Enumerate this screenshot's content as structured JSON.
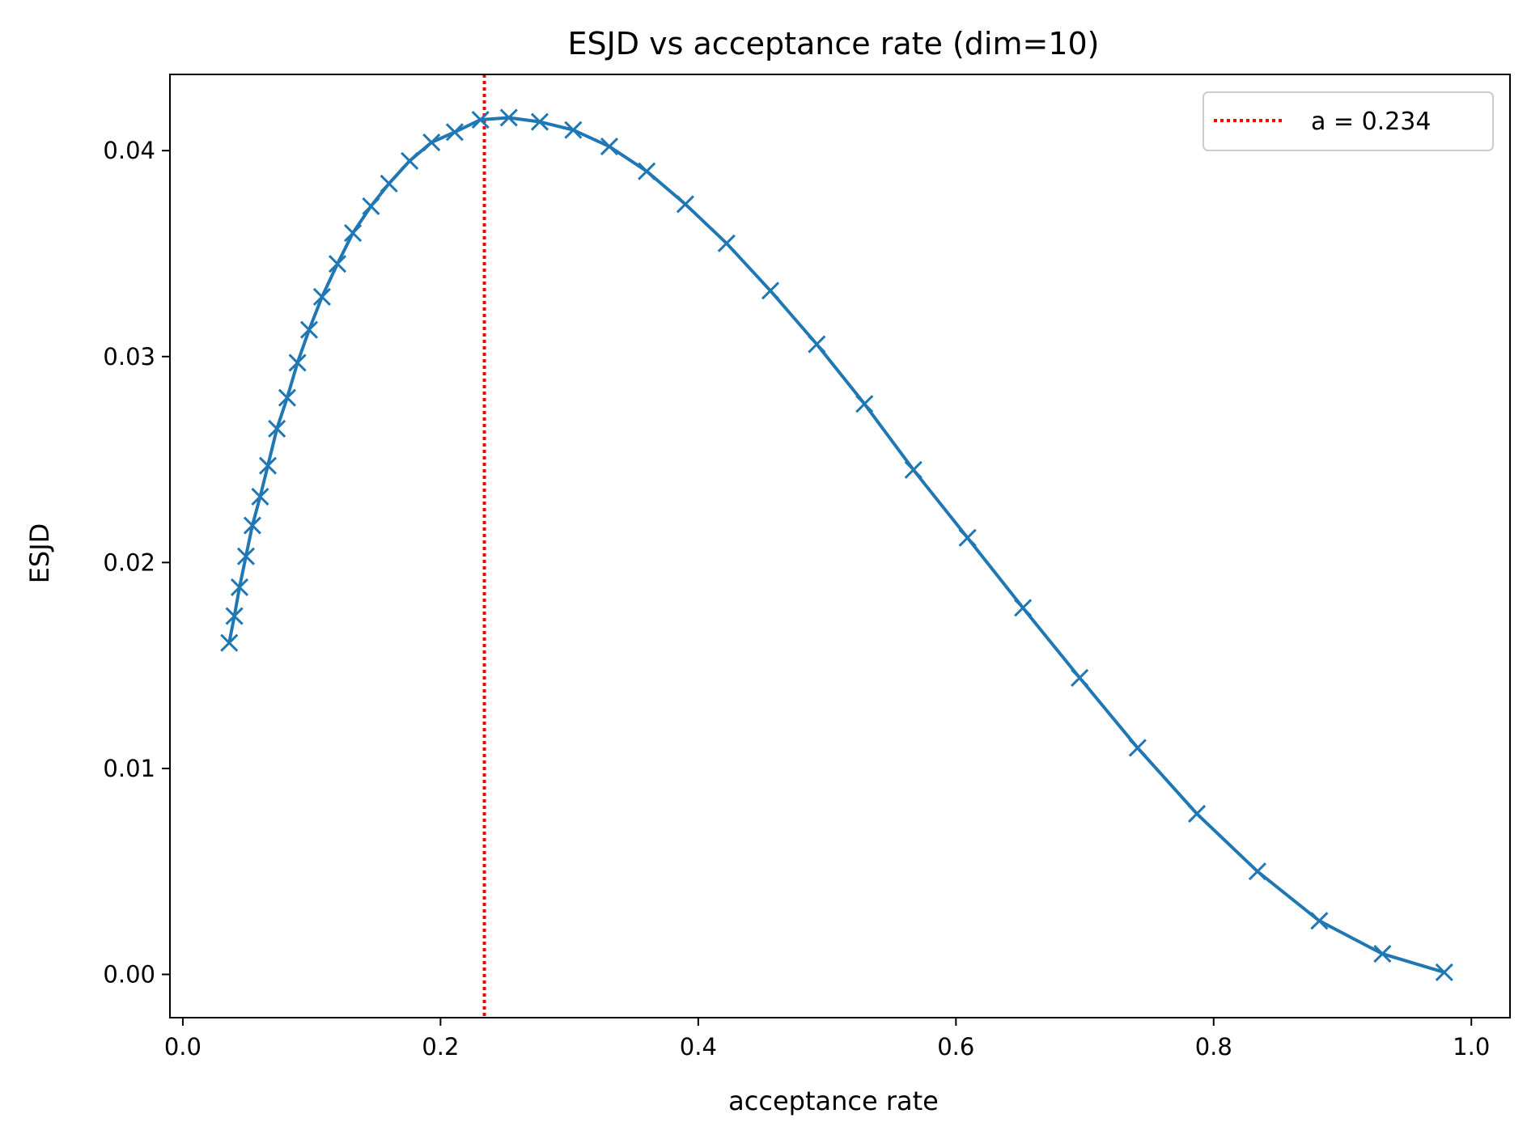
{
  "chart_data": {
    "type": "line",
    "title": "ESJD vs acceptance rate (dim=10)",
    "xlabel": "acceptance rate",
    "ylabel": "ESJD",
    "xlim": [
      -0.01,
      1.03
    ],
    "ylim": [
      -0.0021,
      0.0437
    ],
    "xticks": [
      0.0,
      0.2,
      0.4,
      0.6,
      0.8,
      1.0
    ],
    "xtick_labels": [
      "0.0",
      "0.2",
      "0.4",
      "0.6",
      "0.8",
      "1.0"
    ],
    "yticks": [
      0.0,
      0.01,
      0.02,
      0.03,
      0.04
    ],
    "ytick_labels": [
      "0.00",
      "0.01",
      "0.02",
      "0.03",
      "0.04"
    ],
    "grid": false,
    "legend_position": "top-right",
    "series": [
      {
        "name": "ESJD",
        "color": "#1f77b4",
        "marker": "x",
        "x": [
          0.036,
          0.04,
          0.044,
          0.049,
          0.054,
          0.06,
          0.066,
          0.073,
          0.081,
          0.089,
          0.098,
          0.108,
          0.12,
          0.132,
          0.146,
          0.16,
          0.176,
          0.193,
          0.211,
          0.231,
          0.253,
          0.277,
          0.303,
          0.331,
          0.36,
          0.39,
          0.422,
          0.456,
          0.492,
          0.529,
          0.567,
          0.609,
          0.652,
          0.696,
          0.741,
          0.787,
          0.834,
          0.882,
          0.931,
          0.979
        ],
        "y": [
          0.0161,
          0.0174,
          0.0188,
          0.0203,
          0.0218,
          0.0232,
          0.0247,
          0.0265,
          0.028,
          0.0297,
          0.0313,
          0.0329,
          0.0345,
          0.036,
          0.0373,
          0.0384,
          0.0395,
          0.0404,
          0.0409,
          0.0415,
          0.0416,
          0.0414,
          0.041,
          0.0402,
          0.039,
          0.0374,
          0.0355,
          0.0332,
          0.0306,
          0.0277,
          0.0245,
          0.0212,
          0.0178,
          0.0144,
          0.011,
          0.0078,
          0.005,
          0.0026,
          0.001,
          0.0001
        ]
      }
    ],
    "reference_line": {
      "label": "a = 0.234",
      "x": 0.234,
      "color": "#ff0000",
      "style": "dotted"
    }
  }
}
